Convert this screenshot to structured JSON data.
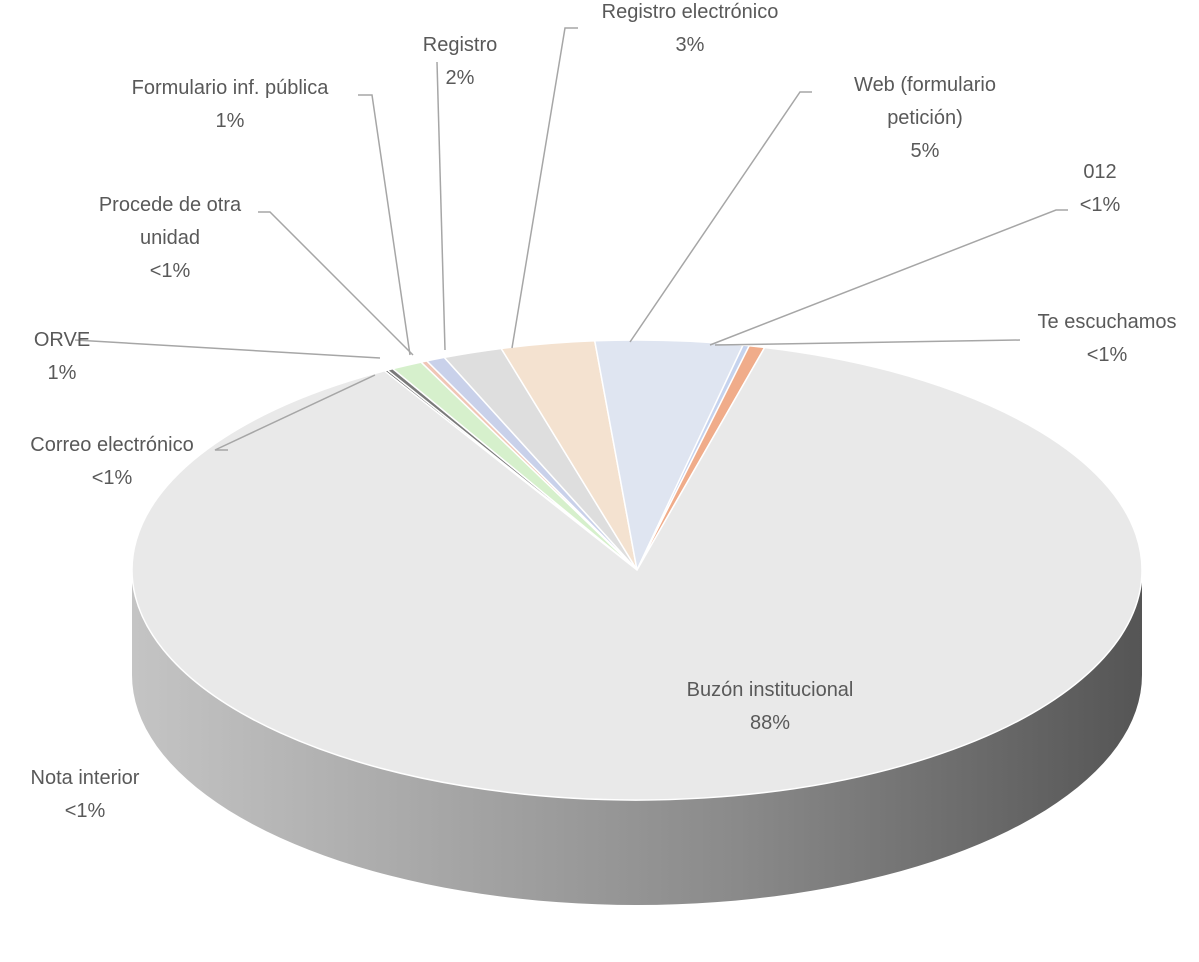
{
  "chart_data": {
    "type": "pie",
    "categories": [
      "Nota interior",
      "Correo electrónico",
      "ORVE",
      "Procede de otra unidad",
      "Formulario inf. pública",
      "Registro",
      "Registro electrónico",
      "Web (formulario petición)",
      "012",
      "Te escuchamos",
      "Buzón institucional"
    ],
    "values": [
      0.1,
      0.2,
      1.0,
      0.2,
      0.6,
      1.9,
      3.0,
      4.7,
      0.2,
      0.5,
      87.6
    ],
    "value_labels": [
      "<1%",
      "<1%",
      "1%",
      "<1%",
      "1%",
      "2%",
      "3%",
      "5%",
      "<1%",
      "<1%",
      "88%"
    ],
    "colors": [
      "#4a4a4a",
      "#7a7a7a",
      "#d6f0cc",
      "#f0c6b6",
      "#c9d1ea",
      "#dedede",
      "#f4e2d0",
      "#dfe5f1",
      "#c6d3ee",
      "#f0ac8a",
      "#e9e9e9"
    ]
  }
}
